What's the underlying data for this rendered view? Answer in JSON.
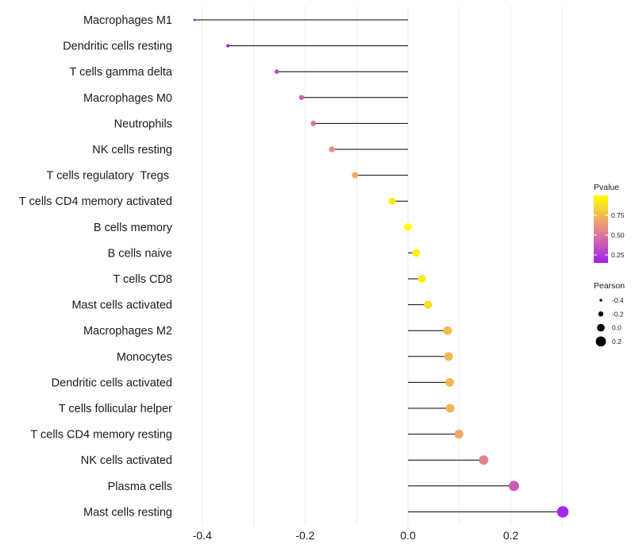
{
  "chart_data": {
    "type": "lollipop",
    "title": "",
    "xlabel": "",
    "ylabel": "",
    "xlim": [
      -0.44,
      0.32
    ],
    "x_ticks": [
      -0.4,
      -0.2,
      0.0,
      0.2
    ],
    "x_tick_labels": [
      "-0.4",
      "-0.2",
      "0.0",
      "0.2"
    ],
    "grid": "vertical",
    "categories": [
      "Macrophages M1",
      "Dendritic cells resting",
      "T cells gamma delta",
      "Macrophages M0",
      "Neutrophils",
      "NK cells resting",
      "T cells regulatory  Tregs ",
      "T cells CD4 memory activated",
      "B cells memory",
      "B cells naive",
      "T cells CD8",
      "Mast cells activated",
      "Macrophages M2",
      "Monocytes",
      "Dendritic cells activated",
      "T cells follicular helper",
      "T cells CD4 memory resting",
      "NK cells activated",
      "Plasma cells",
      "Mast cells resting"
    ],
    "pearson": [
      -0.415,
      -0.35,
      -0.255,
      -0.207,
      -0.184,
      -0.148,
      -0.103,
      -0.031,
      0.0,
      0.016,
      0.027,
      0.039,
      0.077,
      0.079,
      0.081,
      0.082,
      0.099,
      0.147,
      0.206,
      0.301
    ],
    "pvalue": [
      0.0,
      0.02,
      0.32,
      0.42,
      0.5,
      0.6,
      0.7,
      0.94,
      1.0,
      0.96,
      0.93,
      0.89,
      0.76,
      0.75,
      0.75,
      0.74,
      0.69,
      0.55,
      0.4,
      0.18
    ],
    "legend": {
      "pvalue_title": "Pvalue",
      "pvalue_ticks": [
        0.25,
        0.5,
        0.75
      ],
      "pvalue_tick_labels": [
        "0.25",
        "0.50",
        "0.75"
      ],
      "pvalue_range": [
        0.15,
        1.0
      ],
      "pearson_title": "Pearson",
      "pearson_levels": [
        -0.4,
        -0.2,
        0.0,
        0.2
      ],
      "pearson_labels": [
        "-0.4",
        "-0.2",
        "0.0",
        "0.2"
      ],
      "placement": "right"
    },
    "colors": {
      "low": "#a020f0",
      "mid": "#e8878a",
      "high": "#ffff00",
      "stem": "#000000",
      "grid": "#ebebeb"
    }
  }
}
